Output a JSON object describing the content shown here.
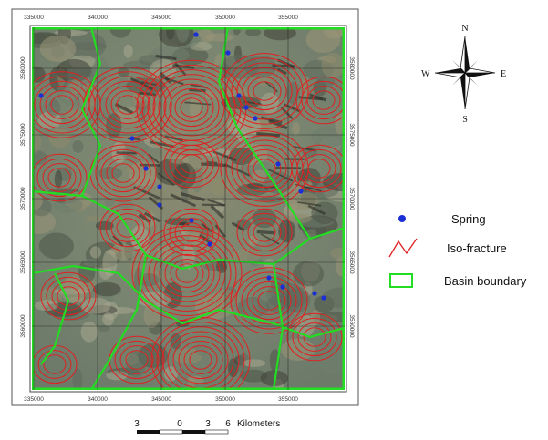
{
  "map": {
    "x_labels": [
      "335000",
      "340000",
      "345000",
      "350000",
      "355000"
    ],
    "y_labels": [
      "3580000",
      "3575000",
      "3570000",
      "3565000",
      "3560000"
    ],
    "compass": {
      "n": "N",
      "s": "S",
      "e": "E",
      "w": "W"
    },
    "legend": {
      "spring": "Spring",
      "iso_fracture": "Iso-fracture",
      "basin_boundary": "Basin boundary"
    },
    "scale_bar": {
      "labels": [
        "3",
        "0",
        "3",
        "6"
      ],
      "unit": "Kilometers"
    }
  }
}
